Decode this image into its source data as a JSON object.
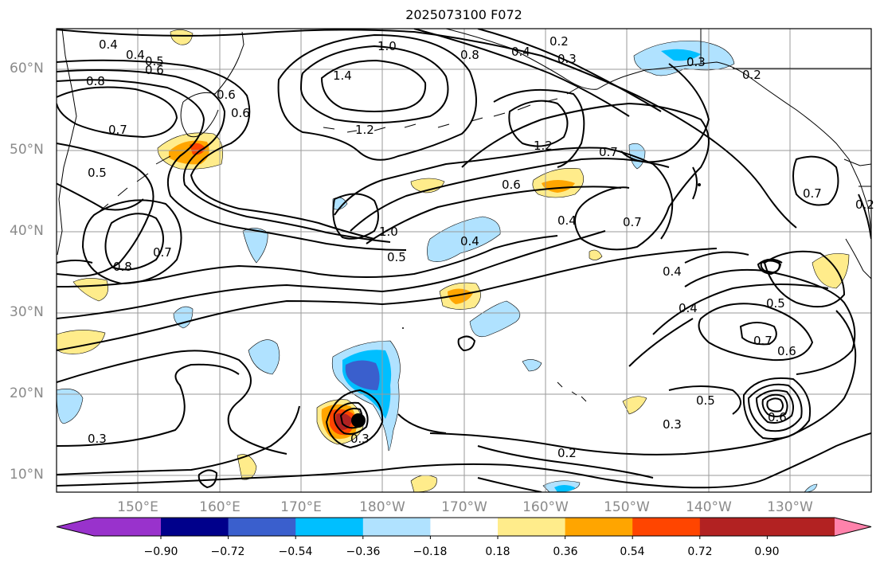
{
  "title": "2025073100 F072",
  "lat_labels": [
    "60°N",
    "50°N",
    "40°N",
    "30°N",
    "20°N",
    "10°N"
  ],
  "lon_labels": [
    "150°E",
    "160°E",
    "170°E",
    "180°W",
    "170°W",
    "160°W",
    "150°W",
    "140°W",
    "130°W"
  ],
  "colorbar": {
    "ticks": [
      "−0.90",
      "−0.72",
      "−0.54",
      "−0.36",
      "−0.18",
      "0.18",
      "0.36",
      "0.54",
      "0.72",
      "0.90"
    ],
    "colors": [
      "#9932cc",
      "#00008b",
      "#3a5fcd",
      "#00bfff",
      "#b0e2ff",
      "#ffffff",
      "#ffec8b",
      "#ffa500",
      "#ff4500",
      "#b22222",
      "#ff82ab"
    ]
  },
  "contour_labels": [
    "0.4",
    "0.4",
    "0.5",
    "0.6",
    "0.8",
    "1.0",
    "0.8",
    "0.4",
    "0.2",
    "0.3",
    "0.3",
    "0.2",
    "1.4",
    "0.6",
    "0.6",
    "0.7",
    "0.5",
    "1.2",
    "1.2",
    "0.7",
    "0.6",
    "0.7",
    "0.2",
    "1.0",
    "0.5",
    "0.4",
    "0.4",
    "0.7",
    "0.8",
    "0.7",
    "0.4",
    "0.4",
    "0.5",
    "0.7",
    "0.6",
    "0.5",
    "0.6",
    "0.3",
    "0.3",
    "0.2",
    "0.3"
  ]
}
